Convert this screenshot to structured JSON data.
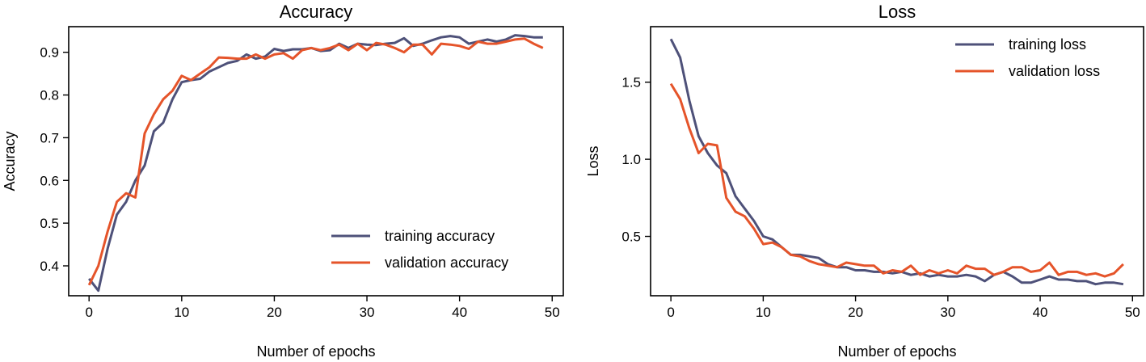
{
  "chart_data": [
    {
      "type": "line",
      "title": "Accuracy",
      "xlabel": "Number of epochs",
      "ylabel": "Accuracy",
      "xlim": [
        -2.2,
        51.2
      ],
      "ylim": [
        0.33,
        0.96
      ],
      "xticks": [
        0,
        10,
        20,
        30,
        40,
        50
      ],
      "yticks": [
        0.4,
        0.5,
        0.6,
        0.7,
        0.8,
        0.9
      ],
      "tick_labels_x": [
        "0",
        "10",
        "20",
        "30",
        "40",
        "50"
      ],
      "tick_labels_y": [
        "0.4",
        "0.5",
        "0.6",
        "0.7",
        "0.8",
        "0.9"
      ],
      "grid": false,
      "legend": "lower-right",
      "x": [
        0,
        1,
        2,
        3,
        4,
        5,
        6,
        7,
        8,
        9,
        10,
        11,
        12,
        13,
        14,
        15,
        16,
        17,
        18,
        19,
        20,
        21,
        22,
        23,
        24,
        25,
        26,
        27,
        28,
        29,
        30,
        31,
        32,
        33,
        34,
        35,
        36,
        37,
        38,
        39,
        40,
        41,
        42,
        43,
        44,
        45,
        46,
        47,
        48,
        49
      ],
      "series": [
        {
          "name": "training accuracy",
          "color": "#4e5179",
          "values": [
            0.37,
            0.342,
            0.44,
            0.52,
            0.55,
            0.6,
            0.635,
            0.715,
            0.735,
            0.79,
            0.83,
            0.835,
            0.838,
            0.855,
            0.865,
            0.875,
            0.88,
            0.895,
            0.885,
            0.89,
            0.908,
            0.903,
            0.907,
            0.907,
            0.91,
            0.903,
            0.905,
            0.92,
            0.91,
            0.92,
            0.918,
            0.917,
            0.92,
            0.922,
            0.933,
            0.915,
            0.92,
            0.928,
            0.935,
            0.938,
            0.935,
            0.92,
            0.925,
            0.93,
            0.925,
            0.93,
            0.94,
            0.938,
            0.935,
            0.935
          ]
        },
        {
          "name": "validation accuracy",
          "color": "#e5542a",
          "values": [
            0.355,
            0.4,
            0.48,
            0.55,
            0.57,
            0.56,
            0.71,
            0.755,
            0.79,
            0.81,
            0.845,
            0.835,
            0.85,
            0.865,
            0.888,
            0.887,
            0.885,
            0.885,
            0.895,
            0.885,
            0.895,
            0.898,
            0.885,
            0.905,
            0.91,
            0.905,
            0.91,
            0.918,
            0.905,
            0.92,
            0.905,
            0.922,
            0.918,
            0.91,
            0.9,
            0.918,
            0.918,
            0.895,
            0.92,
            0.918,
            0.915,
            0.908,
            0.925,
            0.92,
            0.92,
            0.925,
            0.93,
            0.932,
            0.92,
            0.91
          ]
        }
      ]
    },
    {
      "type": "line",
      "title": "Loss",
      "xlabel": "Number of epochs",
      "ylabel": "Loss",
      "xlim": [
        -2.2,
        51.2
      ],
      "ylim": [
        0.115,
        1.86
      ],
      "xticks": [
        0,
        10,
        20,
        30,
        40,
        50
      ],
      "yticks": [
        0.5,
        1.0,
        1.5
      ],
      "tick_labels_x": [
        "0",
        "10",
        "20",
        "30",
        "40",
        "50"
      ],
      "tick_labels_y": [
        "0.5",
        "1.0",
        "1.5"
      ],
      "grid": false,
      "legend": "upper-right",
      "x": [
        0,
        1,
        2,
        3,
        4,
        5,
        6,
        7,
        8,
        9,
        10,
        11,
        12,
        13,
        14,
        15,
        16,
        17,
        18,
        19,
        20,
        21,
        22,
        23,
        24,
        25,
        26,
        27,
        28,
        29,
        30,
        31,
        32,
        33,
        34,
        35,
        36,
        37,
        38,
        39,
        40,
        41,
        42,
        43,
        44,
        45,
        46,
        47,
        48,
        49
      ],
      "series": [
        {
          "name": "training loss",
          "color": "#4e5179",
          "values": [
            1.78,
            1.66,
            1.38,
            1.15,
            1.04,
            0.96,
            0.91,
            0.76,
            0.68,
            0.6,
            0.5,
            0.48,
            0.43,
            0.38,
            0.38,
            0.37,
            0.36,
            0.32,
            0.3,
            0.3,
            0.28,
            0.28,
            0.27,
            0.27,
            0.26,
            0.27,
            0.25,
            0.26,
            0.24,
            0.25,
            0.24,
            0.24,
            0.25,
            0.24,
            0.21,
            0.25,
            0.27,
            0.24,
            0.2,
            0.2,
            0.22,
            0.24,
            0.22,
            0.22,
            0.21,
            0.21,
            0.19,
            0.2,
            0.2,
            0.19
          ]
        },
        {
          "name": "validation loss",
          "color": "#e5542a",
          "values": [
            1.49,
            1.39,
            1.2,
            1.04,
            1.1,
            1.09,
            0.75,
            0.66,
            0.63,
            0.55,
            0.45,
            0.46,
            0.43,
            0.38,
            0.37,
            0.34,
            0.32,
            0.31,
            0.3,
            0.33,
            0.32,
            0.31,
            0.31,
            0.26,
            0.28,
            0.27,
            0.31,
            0.25,
            0.28,
            0.26,
            0.28,
            0.26,
            0.31,
            0.29,
            0.29,
            0.25,
            0.27,
            0.3,
            0.3,
            0.27,
            0.28,
            0.33,
            0.25,
            0.27,
            0.27,
            0.25,
            0.26,
            0.24,
            0.26,
            0.32
          ]
        }
      ]
    }
  ]
}
